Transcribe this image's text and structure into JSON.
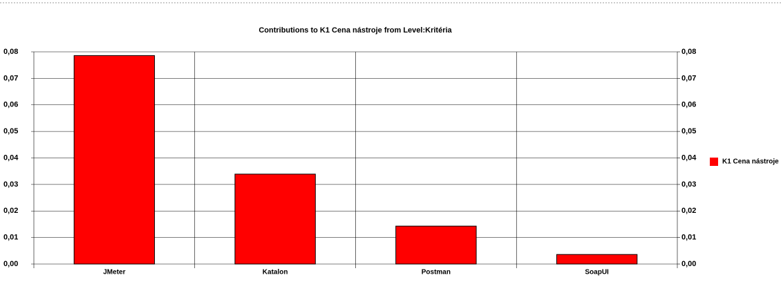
{
  "chart_data": {
    "type": "bar",
    "title": "Contributions to K1 Cena nástroje from Level:Kritéria",
    "categories": [
      "JMeter",
      "Katalon",
      "Postman",
      "SoapUI"
    ],
    "series": [
      {
        "name": "K1 Cena nástroje",
        "color": "#ff0000",
        "values": [
          0.0786,
          0.0339,
          0.0143,
          0.0036
        ]
      }
    ],
    "ylim": [
      0,
      0.08
    ],
    "yticks": [
      {
        "value": 0,
        "label": "0,00"
      },
      {
        "value": 0.01,
        "label": "0,01"
      },
      {
        "value": 0.02,
        "label": "0,02"
      },
      {
        "value": 0.03,
        "label": "0,03"
      },
      {
        "value": 0.04,
        "label": "0,04"
      },
      {
        "value": 0.05,
        "label": "0,05"
      },
      {
        "value": 0.06,
        "label": "0,06"
      },
      {
        "value": 0.07,
        "label": "0,07"
      },
      {
        "value": 0.08,
        "label": "0,08"
      }
    ],
    "y2lim": [
      0,
      0.08
    ],
    "y2ticks": [
      {
        "value": 0,
        "label": "0,00"
      },
      {
        "value": 0.01,
        "label": "0,01"
      },
      {
        "value": 0.02,
        "label": "0,02"
      },
      {
        "value": 0.03,
        "label": "0,03"
      },
      {
        "value": 0.04,
        "label": "0,04"
      },
      {
        "value": 0.05,
        "label": "0,05"
      },
      {
        "value": 0.06,
        "label": "0,06"
      },
      {
        "value": 0.07,
        "label": "0,07"
      },
      {
        "value": 0.08,
        "label": "0,08"
      }
    ],
    "grid": true,
    "legend": "right"
  }
}
